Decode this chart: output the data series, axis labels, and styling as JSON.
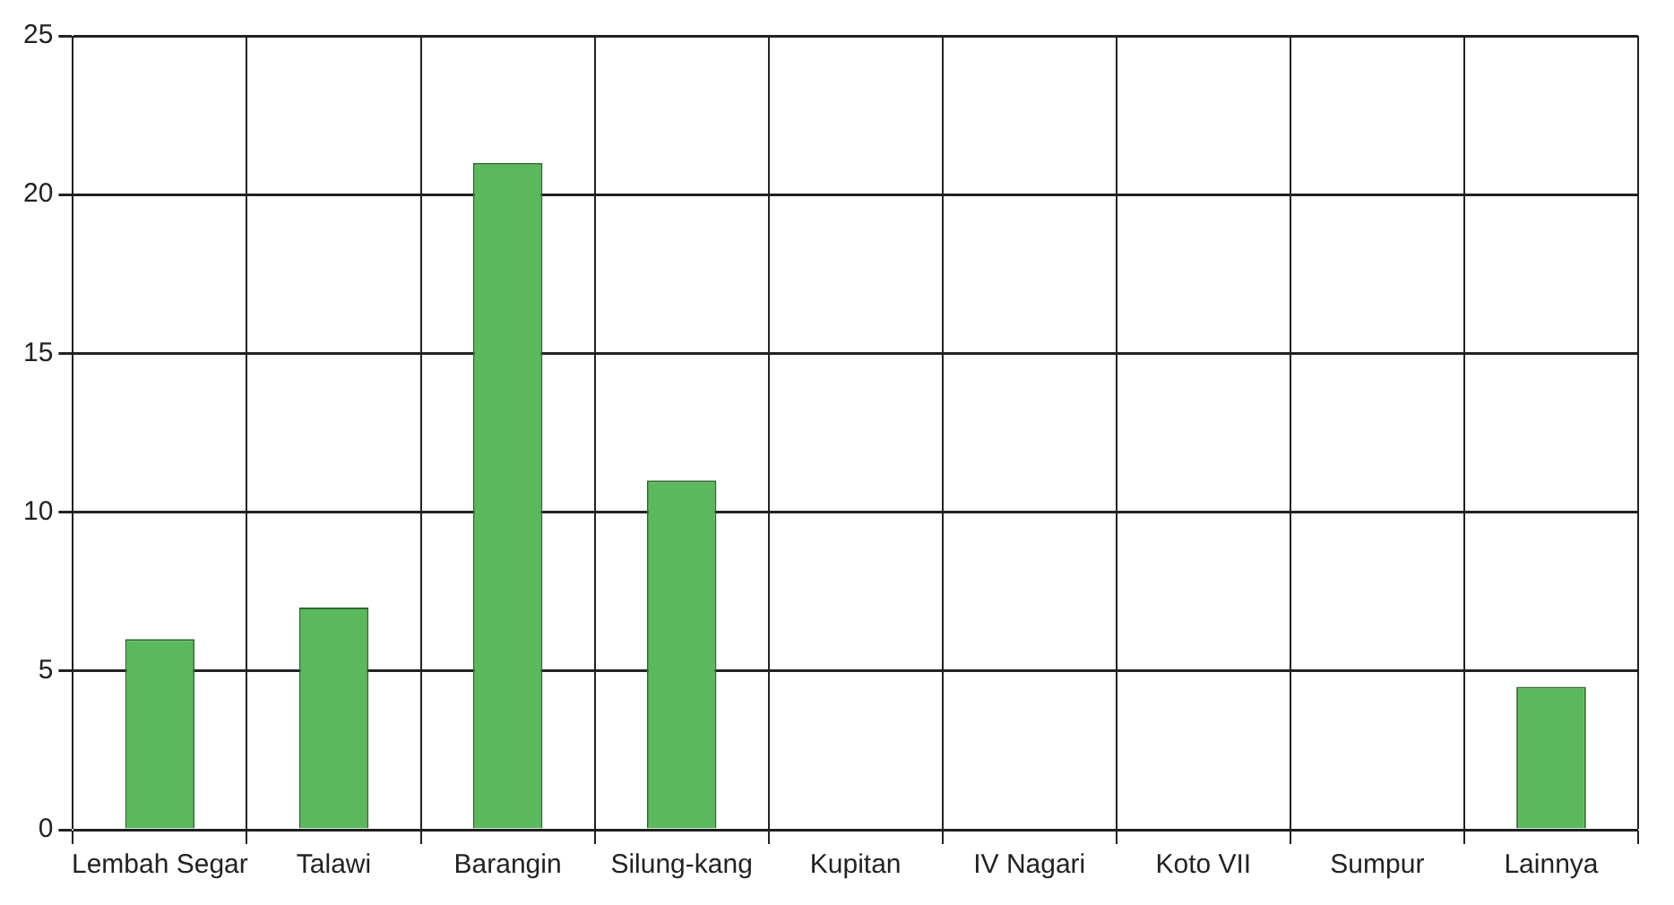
{
  "chart_data": {
    "type": "bar",
    "categories": [
      "Lembah Segar",
      "Talawi",
      "Barangin",
      "Silung-kang",
      "Kupitan",
      "IV Nagari",
      "Koto VII",
      "Sumpur",
      "Lainnya"
    ],
    "values": [
      6,
      7,
      21,
      11,
      0,
      0,
      0,
      0,
      4.5
    ],
    "color": "#5cb85c",
    "ylim": [
      0,
      25
    ],
    "yticks": [
      0,
      5,
      10,
      15,
      20,
      25
    ],
    "grid": true
  }
}
